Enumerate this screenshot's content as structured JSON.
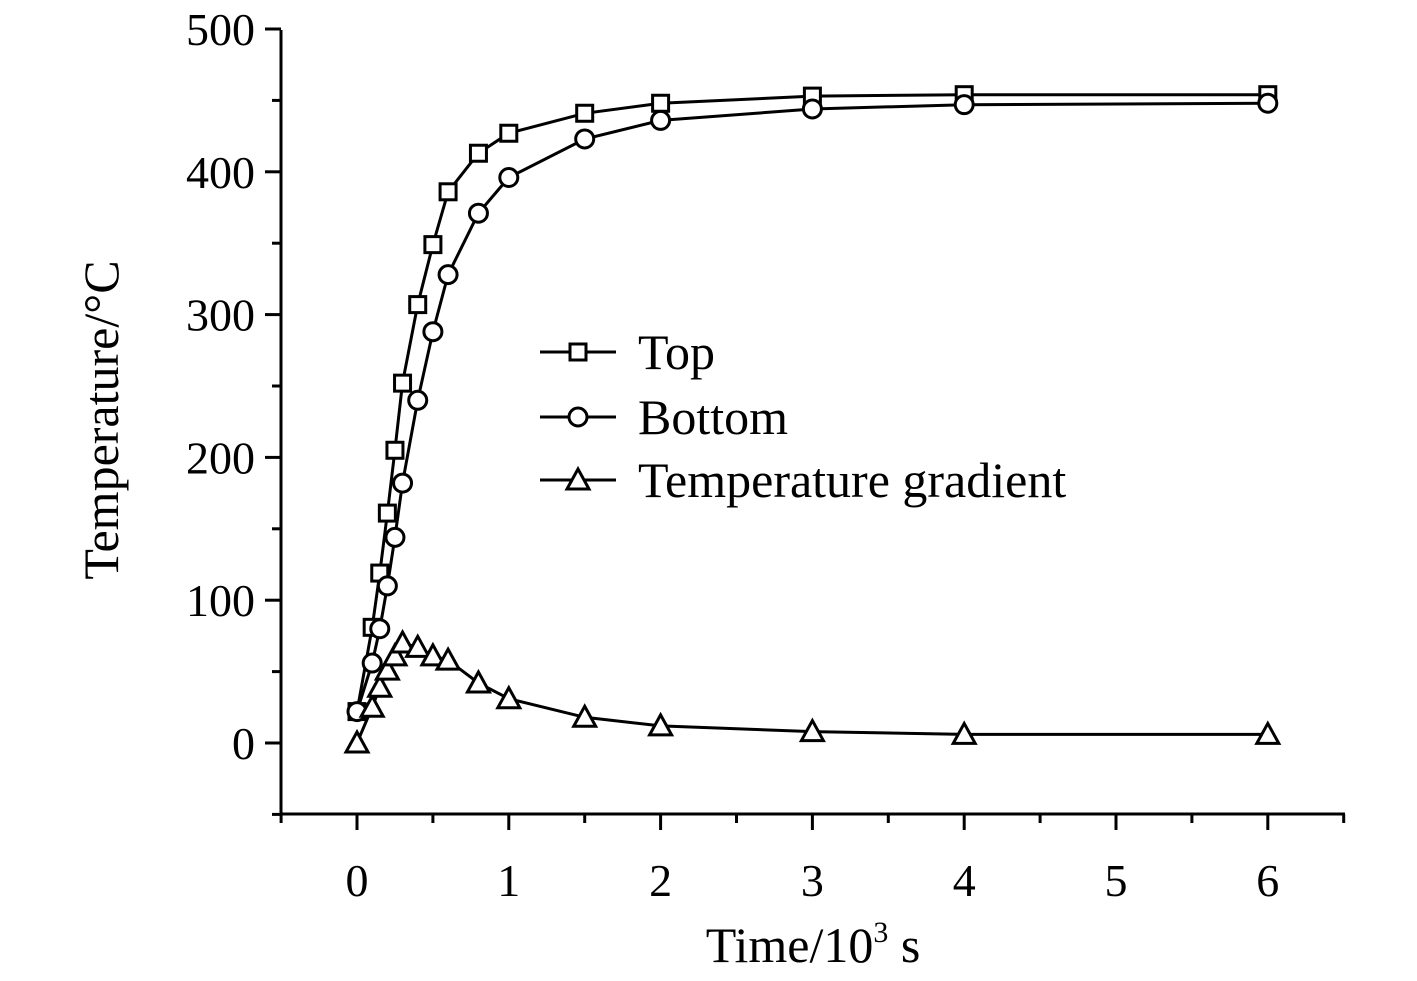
{
  "chart_data": {
    "type": "line",
    "xlabel": "Time/10",
    "xlabel_sup": "3",
    "xlabel_unit": " s",
    "ylabel": "Temperature/°C",
    "xlim": [
      -0.5,
      6.5
    ],
    "ylim": [
      -50,
      500
    ],
    "xticks": [
      0,
      1,
      2,
      3,
      4,
      5,
      6
    ],
    "yticks": [
      0,
      100,
      200,
      300,
      400,
      500
    ],
    "grid": false,
    "legend_position": "center",
    "series": [
      {
        "name": "Top",
        "marker": "square",
        "x": [
          0,
          0.1,
          0.15,
          0.2,
          0.25,
          0.3,
          0.4,
          0.5,
          0.6,
          0.8,
          1,
          1.5,
          2,
          3,
          4,
          6
        ],
        "y": [
          22,
          81,
          119,
          161,
          205,
          252,
          307,
          349,
          386,
          413,
          427,
          441,
          448,
          453,
          454,
          454
        ]
      },
      {
        "name": "Bottom",
        "marker": "circle",
        "x": [
          0,
          0.1,
          0.15,
          0.2,
          0.25,
          0.3,
          0.4,
          0.5,
          0.6,
          0.8,
          1,
          1.5,
          2,
          3,
          4,
          6
        ],
        "y": [
          22,
          56,
          80,
          110,
          144,
          182,
          240,
          288,
          328,
          371,
          396,
          423,
          436,
          444,
          447,
          448
        ]
      },
      {
        "name": "Temperature gradient",
        "marker": "triangle",
        "x": [
          0,
          0.1,
          0.15,
          0.2,
          0.25,
          0.3,
          0.4,
          0.5,
          0.6,
          0.8,
          1,
          1.5,
          2,
          3,
          4,
          6
        ],
        "y": [
          0,
          25,
          39,
          51,
          61,
          70,
          67,
          61,
          58,
          42,
          31,
          18,
          12,
          8,
          6,
          6
        ]
      }
    ]
  }
}
